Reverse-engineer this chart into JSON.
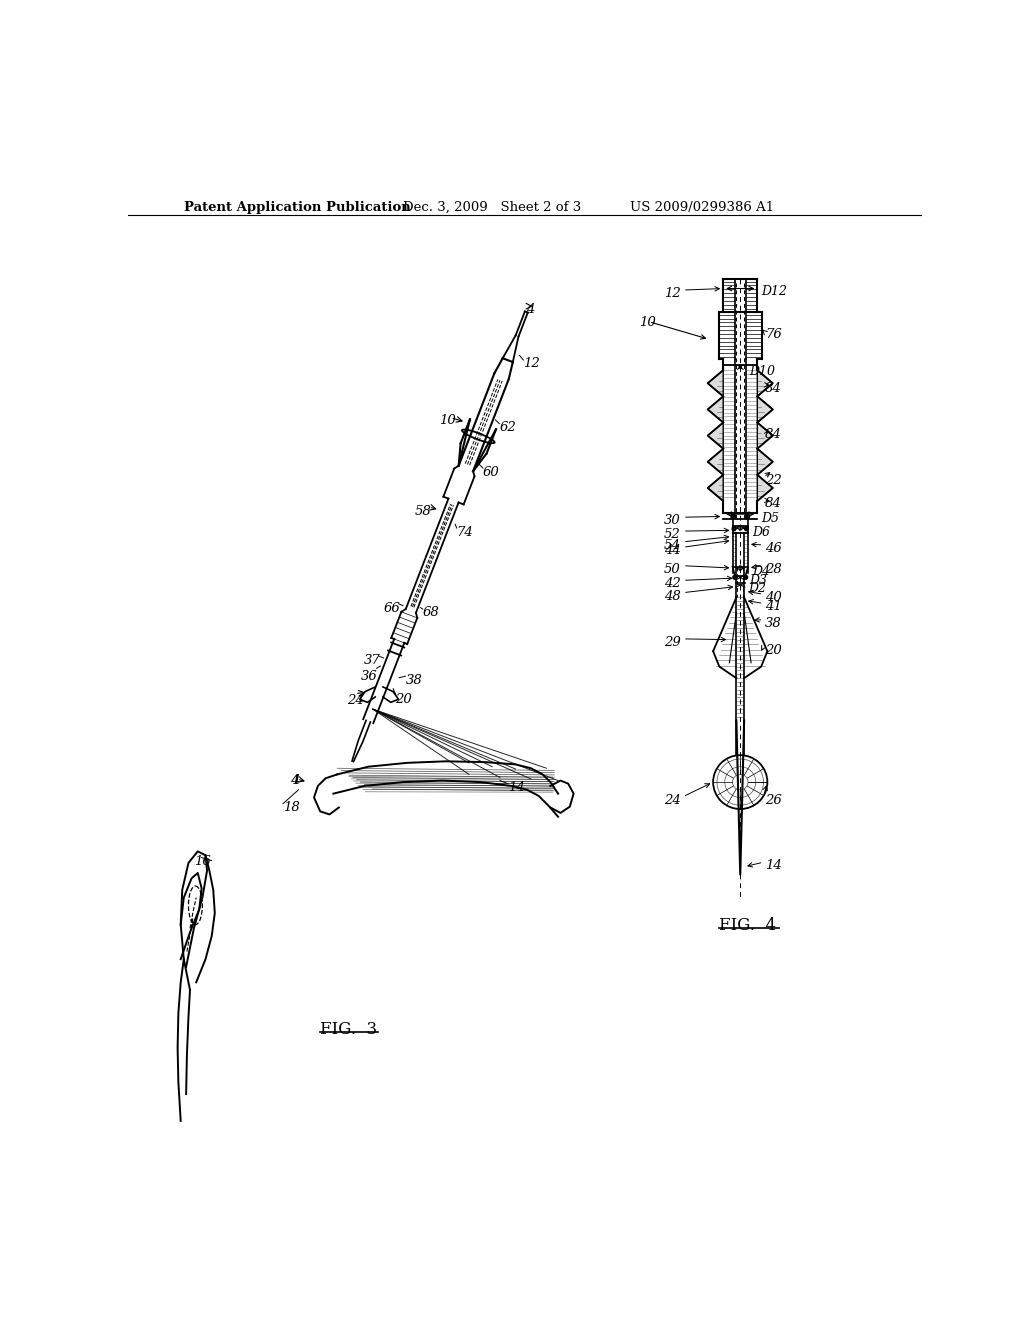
{
  "header_left": "Patent Application Publication",
  "header_mid": "Dec. 3, 2009   Sheet 2 of 3",
  "header_right": "US 2009/0299386 A1",
  "fig3_label": "FIG.  3",
  "fig4_label": "FIG.  4",
  "bg_color": "#ffffff",
  "line_color": "#000000",
  "text_color": "#000000"
}
